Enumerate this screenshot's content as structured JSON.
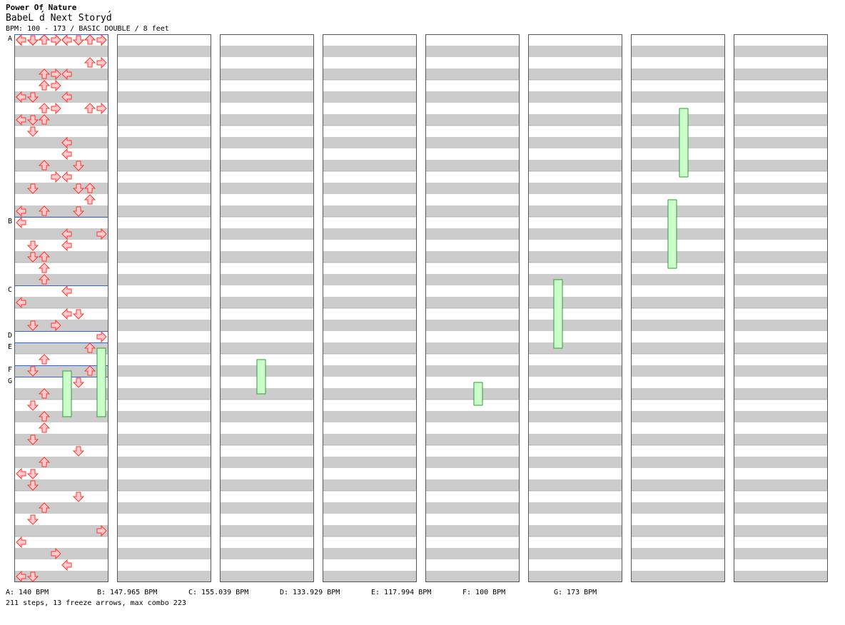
{
  "header": {
    "artist": "Power Of Nature",
    "title": "BabeL d́́ Next Storyd́́",
    "meta": "BPM: 100 - 173 / BASIC DOUBLE / 8 feet"
  },
  "sections": [
    {
      "label": "A",
      "bpm": "140 BPM",
      "column": 0,
      "row": 0
    },
    {
      "label": "B",
      "bpm": "147.965 BPM",
      "column": 0,
      "row": 16
    },
    {
      "label": "C",
      "bpm": "155.039 BPM",
      "column": 0,
      "row": 22
    },
    {
      "label": "D",
      "bpm": "133.929 BPM",
      "column": 0,
      "row": 26
    },
    {
      "label": "E",
      "bpm": "117.994 BPM",
      "column": 0,
      "row": 27
    },
    {
      "label": "F",
      "bpm": "100 BPM",
      "column": 0,
      "row": 29
    },
    {
      "label": "G",
      "bpm": "173 BPM",
      "column": 0,
      "row": 30
    }
  ],
  "legend": [
    {
      "text": "A: 140 BPM"
    },
    {
      "text": "B: 147.965 BPM"
    },
    {
      "text": "C: 155.039 BPM"
    },
    {
      "text": "D: 133.929 BPM"
    },
    {
      "text": "E: 117.994 BPM"
    },
    {
      "text": "F: 100 BPM"
    },
    {
      "text": "G: 173 BPM"
    }
  ],
  "stats": "211 steps, 13 freeze arrows, max combo 223",
  "colors": {
    "stripe": "#cccccc",
    "arrow_fill": "#ffcccc",
    "arrow_stroke": "#ff3333",
    "freeze_fill": "#ccffcc",
    "freeze_stroke": "#339933",
    "section_line": "#3366cc"
  },
  "chart": {
    "columns": 8,
    "rows_per_column": 48,
    "lanes": 8,
    "notes": [
      [
        [
          0,
          1
        ],
        [
          0,
          0
        ],
        [
          0,
          5
        ],
        [
          0,
          4
        ],
        [
          0,
          5
        ],
        [
          0,
          4
        ],
        [
          0,
          2
        ],
        [
          0,
          6
        ],
        [
          0,
          7
        ],
        [
          0,
          3
        ],
        [
          0,
          4
        ],
        [
          0,
          0
        ],
        [
          0,
          1
        ],
        [
          0,
          1
        ],
        [
          0,
          0
        ],
        [
          0,
          7
        ],
        [
          0,
          2
        ],
        [
          0,
          0
        ],
        [
          0,
          1
        ],
        [
          0,
          0
        ],
        [
          0,
          4
        ],
        [
          0,
          3
        ],
        [
          0,
          2
        ],
        [
          0,
          1
        ],
        [
          0,
          0
        ],
        [
          0,
          4
        ],
        [
          0,
          1
        ],
        [
          0,
          0
        ],
        [
          0,
          2
        ],
        [
          0,
          5
        ],
        [
          0,
          1
        ],
        [
          0,
          7
        ],
        [
          0,
          3
        ],
        [
          0,
          6
        ],
        [
          0,
          5
        ],
        [
          0,
          4
        ],
        [
          0,
          3
        ],
        [
          0,
          0
        ],
        [
          0,
          2
        ],
        [
          0,
          6
        ],
        [
          0,
          3
        ],
        [
          0,
          7
        ],
        [
          0,
          2
        ],
        [
          0,
          1
        ],
        [
          0,
          6
        ],
        [
          0,
          2
        ],
        [
          0,
          5
        ],
        [
          0,
          0
        ]
      ],
      [
        [
          3,
          2
        ],
        [
          4,
          2
        ],
        [
          2,
          7
        ],
        [
          2,
          6
        ],
        [
          5,
          4
        ],
        [
          5,
          0
        ],
        [
          3,
          3
        ],
        [
          3,
          4
        ],
        [
          4,
          3
        ],
        [
          5,
          0
        ],
        [
          5,
          1
        ],
        [
          6,
          2
        ],
        [
          4,
          2
        ],
        [
          5,
          1
        ],
        [
          6,
          6
        ],
        [
          6,
          3
        ],
        [
          6,
          7
        ],
        [
          7,
          0
        ],
        [
          7,
          1
        ],
        [
          7,
          2
        ]
      ],
      [
        [
          8,
          1
        ],
        [
          9,
          4
        ],
        [
          9,
          4
        ],
        [
          10,
          4
        ],
        [
          11,
          5
        ],
        [
          11,
          2
        ],
        [
          12,
          3
        ],
        [
          12,
          4
        ],
        [
          13,
          1
        ],
        [
          13,
          6
        ],
        [
          13,
          5
        ],
        [
          14,
          6
        ],
        [
          15,
          0
        ],
        [
          15,
          2
        ],
        [
          15,
          5
        ],
        [
          16,
          0
        ],
        [
          17,
          4
        ],
        [
          17,
          7
        ],
        [
          18,
          1
        ],
        [
          18,
          4
        ],
        [
          19,
          1
        ],
        [
          19,
          2
        ],
        [
          20,
          2
        ],
        [
          21,
          2
        ],
        [
          22,
          4
        ],
        [
          23,
          0
        ],
        [
          24,
          5
        ],
        [
          24,
          4
        ],
        [
          25,
          3
        ],
        [
          25,
          1
        ]
      ],
      [
        [
          26,
          7
        ],
        [
          27,
          6
        ],
        [
          28,
          2
        ],
        [
          29,
          1
        ],
        [
          29,
          6
        ],
        [
          30,
          5
        ],
        [
          31,
          2
        ],
        [
          32,
          1
        ],
        [
          33,
          2
        ],
        [
          34,
          2
        ],
        [
          35,
          1
        ],
        [
          36,
          5
        ],
        [
          37,
          2
        ],
        [
          38,
          1
        ],
        [
          38,
          0
        ],
        [
          39,
          1
        ],
        [
          40,
          5
        ],
        [
          41,
          2
        ],
        [
          42,
          1
        ],
        [
          43,
          7
        ],
        [
          44,
          0
        ],
        [
          45,
          3
        ],
        [
          46,
          4
        ],
        [
          47,
          0
        ],
        [
          47,
          1
        ]
      ]
    ]
  }
}
